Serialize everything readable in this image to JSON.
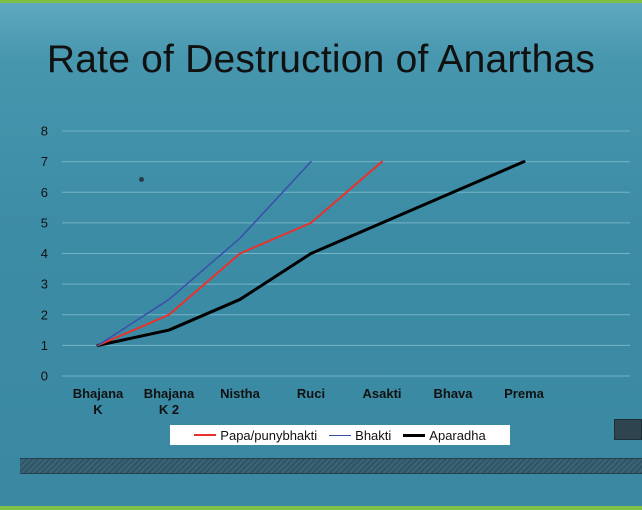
{
  "slide": {
    "title": "Rate of Destruction of Anarthas"
  },
  "chart_data": {
    "type": "line",
    "title": "Rate of Destruction of Anarthas",
    "categories": [
      "Bhajana K",
      "Bhajana K 2",
      "Nistha",
      "Ruci",
      "Asakti",
      "Bhava",
      "Prema"
    ],
    "tick_labels": [
      [
        "Bhajana",
        "K"
      ],
      [
        "Bhajana",
        "K 2"
      ],
      [
        "Nistha"
      ],
      [
        "Ruci"
      ],
      [
        "Asakti"
      ],
      [
        "Bhava"
      ],
      [
        "Prema"
      ]
    ],
    "ylim": [
      0,
      8
    ],
    "yticks": [
      0,
      1,
      2,
      3,
      4,
      5,
      6,
      7,
      8
    ],
    "grid": true,
    "legend_position": "bottom",
    "series": [
      {
        "name": "Papa/punybhakti",
        "color": "#e8322a",
        "values": [
          1,
          2,
          4,
          5,
          7,
          null,
          null
        ]
      },
      {
        "name": "Bhakti",
        "color": "#3a4fa8",
        "values": [
          1,
          2.5,
          4.5,
          7,
          null,
          null,
          null
        ]
      },
      {
        "name": "Aparadha",
        "color": "#000000",
        "values": [
          1,
          1.5,
          2.5,
          4,
          5,
          6,
          7
        ]
      }
    ]
  }
}
